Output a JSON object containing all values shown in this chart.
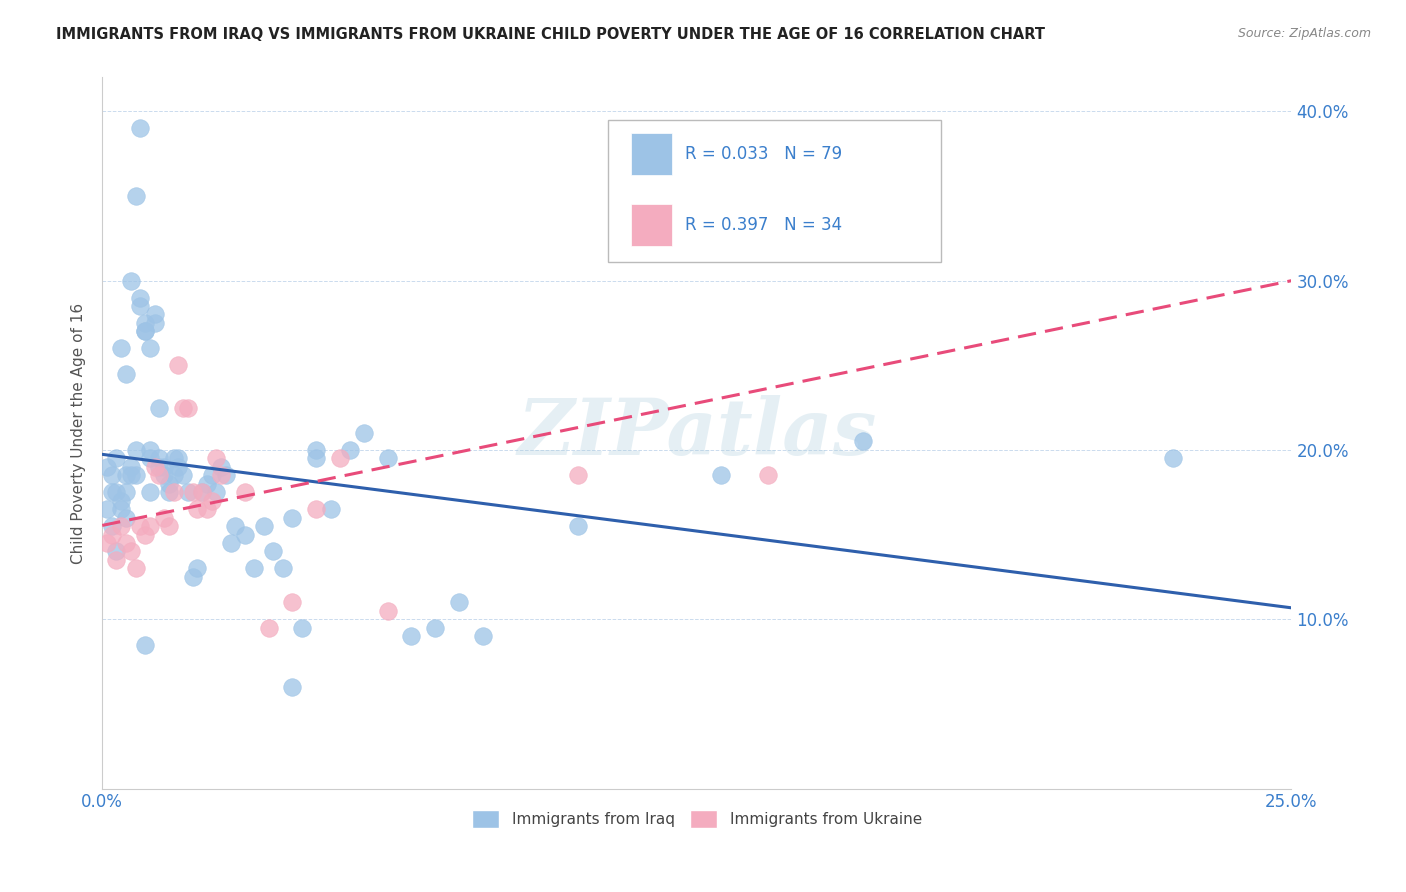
{
  "title": "IMMIGRANTS FROM IRAQ VS IMMIGRANTS FROM UKRAINE CHILD POVERTY UNDER THE AGE OF 16 CORRELATION CHART",
  "source": "Source: ZipAtlas.com",
  "ylabel": "Child Poverty Under the Age of 16",
  "xlim": [
    0.0,
    0.25
  ],
  "ylim": [
    0.0,
    0.42
  ],
  "iraq_R": 0.033,
  "iraq_N": 79,
  "ukraine_R": 0.397,
  "ukraine_N": 34,
  "iraq_color": "#9DC3E6",
  "ukraine_color": "#F4ACBF",
  "iraq_line_color": "#2E5FAC",
  "ukraine_line_color": "#E84B7A",
  "text_blue": "#3B7FCC",
  "watermark": "ZIPatlas",
  "iraq_x": [
    0.001,
    0.002,
    0.002,
    0.003,
    0.003,
    0.004,
    0.004,
    0.005,
    0.005,
    0.005,
    0.006,
    0.006,
    0.007,
    0.007,
    0.008,
    0.008,
    0.009,
    0.009,
    0.01,
    0.01,
    0.01,
    0.011,
    0.011,
    0.012,
    0.012,
    0.013,
    0.013,
    0.014,
    0.014,
    0.015,
    0.015,
    0.016,
    0.016,
    0.017,
    0.018,
    0.019,
    0.02,
    0.021,
    0.022,
    0.023,
    0.024,
    0.025,
    0.026,
    0.027,
    0.028,
    0.03,
    0.032,
    0.034,
    0.036,
    0.038,
    0.04,
    0.042,
    0.045,
    0.048,
    0.052,
    0.06,
    0.065,
    0.07,
    0.075,
    0.08,
    0.001,
    0.002,
    0.003,
    0.004,
    0.005,
    0.006,
    0.007,
    0.008,
    0.009,
    0.01,
    0.012,
    0.045,
    0.055,
    0.1,
    0.13,
    0.16,
    0.225,
    0.04,
    0.009
  ],
  "iraq_y": [
    0.19,
    0.185,
    0.175,
    0.195,
    0.175,
    0.17,
    0.165,
    0.16,
    0.175,
    0.185,
    0.19,
    0.185,
    0.2,
    0.185,
    0.285,
    0.29,
    0.27,
    0.275,
    0.195,
    0.2,
    0.175,
    0.275,
    0.28,
    0.19,
    0.195,
    0.19,
    0.185,
    0.18,
    0.175,
    0.195,
    0.185,
    0.19,
    0.195,
    0.185,
    0.175,
    0.125,
    0.13,
    0.175,
    0.18,
    0.185,
    0.175,
    0.19,
    0.185,
    0.145,
    0.155,
    0.15,
    0.13,
    0.155,
    0.14,
    0.13,
    0.16,
    0.095,
    0.2,
    0.165,
    0.2,
    0.195,
    0.09,
    0.095,
    0.11,
    0.09,
    0.165,
    0.155,
    0.14,
    0.26,
    0.245,
    0.3,
    0.35,
    0.39,
    0.27,
    0.26,
    0.225,
    0.195,
    0.21,
    0.155,
    0.185,
    0.205,
    0.195,
    0.06,
    0.085
  ],
  "ukraine_x": [
    0.001,
    0.002,
    0.003,
    0.004,
    0.005,
    0.006,
    0.007,
    0.008,
    0.009,
    0.01,
    0.011,
    0.012,
    0.013,
    0.014,
    0.015,
    0.016,
    0.017,
    0.018,
    0.019,
    0.02,
    0.021,
    0.022,
    0.023,
    0.024,
    0.025,
    0.03,
    0.035,
    0.04,
    0.045,
    0.05,
    0.06,
    0.1,
    0.12,
    0.14
  ],
  "ukraine_y": [
    0.145,
    0.15,
    0.135,
    0.155,
    0.145,
    0.14,
    0.13,
    0.155,
    0.15,
    0.155,
    0.19,
    0.185,
    0.16,
    0.155,
    0.175,
    0.25,
    0.225,
    0.225,
    0.175,
    0.165,
    0.175,
    0.165,
    0.17,
    0.195,
    0.185,
    0.175,
    0.095,
    0.11,
    0.165,
    0.195,
    0.105,
    0.185,
    0.36,
    0.185
  ]
}
